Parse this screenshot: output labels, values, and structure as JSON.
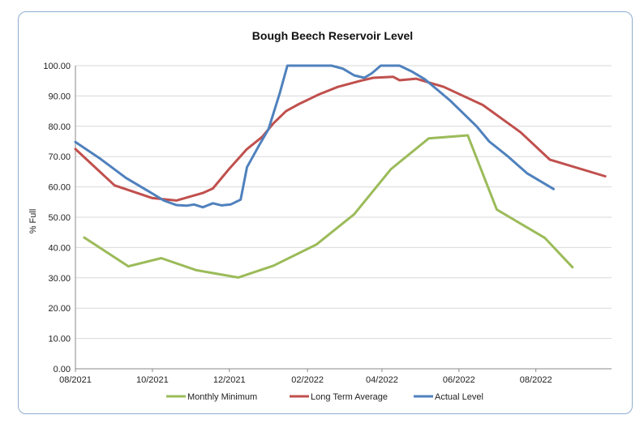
{
  "chart_data": {
    "type": "line",
    "title": "Bough Beech Reservoir Level",
    "xlabel": "",
    "ylabel": "% Full",
    "ylim": [
      0,
      100
    ],
    "y_ticks": [
      "0.00",
      "10.00",
      "20.00",
      "30.00",
      "40.00",
      "50.00",
      "60.00",
      "70.00",
      "80.00",
      "90.00",
      "100.00"
    ],
    "x_range": [
      "2021-08-01",
      "2022-09-30"
    ],
    "x_ticks": [
      {
        "date": "2021-08-01",
        "label": "08/2021"
      },
      {
        "date": "2021-10-01",
        "label": "10/2021"
      },
      {
        "date": "2021-12-01",
        "label": "12/2021"
      },
      {
        "date": "2022-02-01",
        "label": "02/2022"
      },
      {
        "date": "2022-04-01",
        "label": "04/2022"
      },
      {
        "date": "2022-06-01",
        "label": "06/2022"
      },
      {
        "date": "2022-08-01",
        "label": "08/2022"
      }
    ],
    "legend_position": "bottom",
    "series": [
      {
        "name": "Monthly Minimum",
        "color": "#9bbb59",
        "points": [
          [
            "2021-08-08",
            43.3
          ],
          [
            "2021-09-12",
            33.8
          ],
          [
            "2021-10-08",
            36.5
          ],
          [
            "2021-11-05",
            32.5
          ],
          [
            "2021-12-08",
            30.1
          ],
          [
            "2022-01-05",
            34.0
          ],
          [
            "2022-02-08",
            41.0
          ],
          [
            "2022-03-10",
            51.0
          ],
          [
            "2022-04-08",
            65.8
          ],
          [
            "2022-05-08",
            76.0
          ],
          [
            "2022-06-08",
            77.0
          ],
          [
            "2022-07-01",
            52.5
          ],
          [
            "2022-08-08",
            43.2
          ],
          [
            "2022-08-30",
            33.5
          ]
        ]
      },
      {
        "name": "Long Term Average",
        "color": "#c0504d",
        "points": [
          [
            "2021-08-01",
            72.5
          ],
          [
            "2021-09-01",
            60.5
          ],
          [
            "2021-10-01",
            56.3
          ],
          [
            "2021-10-20",
            55.5
          ],
          [
            "2021-11-10",
            58.0
          ],
          [
            "2021-11-18",
            59.5
          ],
          [
            "2021-12-01",
            66.0
          ],
          [
            "2021-12-15",
            72.5
          ],
          [
            "2021-12-27",
            76.5
          ],
          [
            "2022-01-05",
            81.0
          ],
          [
            "2022-01-15",
            85.0
          ],
          [
            "2022-01-25",
            87.3
          ],
          [
            "2022-02-10",
            90.5
          ],
          [
            "2022-02-25",
            93.0
          ],
          [
            "2022-03-15",
            95.0
          ],
          [
            "2022-03-25",
            96.0
          ],
          [
            "2022-04-10",
            96.3
          ],
          [
            "2022-04-15",
            95.2
          ],
          [
            "2022-04-28",
            95.7
          ],
          [
            "2022-05-20",
            93.0
          ],
          [
            "2022-06-20",
            87.0
          ],
          [
            "2022-07-20",
            78.0
          ],
          [
            "2022-08-12",
            69.0
          ],
          [
            "2022-09-25",
            63.5
          ]
        ]
      },
      {
        "name": "Actual Level",
        "color": "#4f81bd",
        "points": [
          [
            "2021-08-01",
            74.8
          ],
          [
            "2021-08-20",
            69.5
          ],
          [
            "2021-09-10",
            63.0
          ],
          [
            "2021-10-01",
            57.8
          ],
          [
            "2021-10-10",
            55.5
          ],
          [
            "2021-10-20",
            54.0
          ],
          [
            "2021-10-28",
            53.8
          ],
          [
            "2021-11-03",
            54.2
          ],
          [
            "2021-11-10",
            53.3
          ],
          [
            "2021-11-18",
            54.6
          ],
          [
            "2021-11-25",
            53.9
          ],
          [
            "2021-12-02",
            54.2
          ],
          [
            "2021-12-10",
            55.8
          ],
          [
            "2021-12-15",
            66.5
          ],
          [
            "2021-12-25",
            74.0
          ],
          [
            "2022-01-01",
            79.0
          ],
          [
            "2022-01-10",
            91.0
          ],
          [
            "2022-01-16",
            100.0
          ],
          [
            "2022-02-20",
            100.0
          ],
          [
            "2022-03-01",
            99.0
          ],
          [
            "2022-03-10",
            96.8
          ],
          [
            "2022-03-18",
            96.0
          ],
          [
            "2022-03-24",
            97.5
          ],
          [
            "2022-03-31",
            100.0
          ],
          [
            "2022-04-15",
            100.0
          ],
          [
            "2022-04-25",
            98.0
          ],
          [
            "2022-05-05",
            95.5
          ],
          [
            "2022-05-15",
            92.0
          ],
          [
            "2022-05-25",
            88.5
          ],
          [
            "2022-06-15",
            80.0
          ],
          [
            "2022-06-25",
            75.0
          ],
          [
            "2022-07-10",
            70.0
          ],
          [
            "2022-07-25",
            64.5
          ],
          [
            "2022-08-15",
            59.3
          ]
        ]
      }
    ]
  }
}
